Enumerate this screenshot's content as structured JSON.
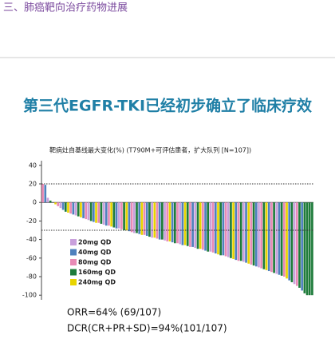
{
  "header": {
    "section_title": "三、肺癌靶向治疗药物进展"
  },
  "slide_title": "第三代EGFR-TKI已经初步确立了临床疗效",
  "chart_data": {
    "type": "bar",
    "subtitle": "靶病灶自基线最大变化(%) (T790M+可评估患者，扩大队列 [N=107])",
    "values": [
      20,
      19,
      5,
      2,
      0,
      -2,
      -4,
      -6,
      -8,
      -10,
      -11,
      -12,
      -13,
      -14,
      -15,
      -16,
      -17,
      -18,
      -19,
      -20,
      -21,
      -22,
      -22,
      -23,
      -24,
      -25,
      -25,
      -26,
      -27,
      -28,
      -28,
      -29,
      -30,
      -30,
      -31,
      -32,
      -33,
      -33,
      -34,
      -35,
      -35,
      -36,
      -37,
      -38,
      -38,
      -39,
      -40,
      -40,
      -41,
      -42,
      -42,
      -43,
      -44,
      -44,
      -45,
      -46,
      -46,
      -47,
      -48,
      -48,
      -49,
      -50,
      -50,
      -51,
      -52,
      -53,
      -53,
      -54,
      -55,
      -56,
      -57,
      -57,
      -58,
      -59,
      -60,
      -61,
      -62,
      -63,
      -63,
      -64,
      -65,
      -66,
      -67,
      -68,
      -69,
      -70,
      -71,
      -72,
      -73,
      -74,
      -75,
      -76,
      -77,
      -78,
      -79,
      -80,
      -82,
      -84,
      -86,
      -88,
      -90,
      -92,
      -95,
      -98,
      -100,
      -100,
      -100
    ],
    "dose": [
      2,
      1,
      0,
      3,
      1,
      4,
      2,
      0,
      1,
      3,
      4,
      2,
      1,
      0,
      3,
      4,
      1,
      2,
      0,
      3,
      1,
      4,
      2,
      3,
      0,
      1,
      2,
      4,
      3,
      1,
      0,
      2,
      3,
      4,
      1,
      2,
      0,
      3,
      1,
      4,
      2,
      1,
      3,
      0,
      4,
      2,
      1,
      3,
      0,
      2,
      4,
      1,
      3,
      2,
      0,
      1,
      4,
      3,
      2,
      1,
      0,
      3,
      4,
      2,
      1,
      3,
      0,
      2,
      1,
      4,
      3,
      1,
      2,
      0,
      3,
      4,
      1,
      2,
      3,
      0,
      1,
      4,
      2,
      3,
      1,
      0,
      2,
      3,
      4,
      1,
      2,
      3,
      0,
      1,
      3,
      2,
      4,
      1,
      3,
      0,
      2,
      3,
      1,
      3,
      3,
      3,
      3
    ],
    "legend": [
      {
        "name": "20mg QD",
        "color": "#c9a0dc"
      },
      {
        "name": "40mg QD",
        "color": "#4f81bd"
      },
      {
        "name": "80mg QD",
        "color": "#e88ab5"
      },
      {
        "name": "160mg QD",
        "color": "#1e7b3a"
      },
      {
        "name": "240mg QD",
        "color": "#e8d400"
      }
    ],
    "ylim": [
      -105,
      45
    ],
    "yticks": [
      40,
      20,
      0,
      -20,
      -40,
      -60,
      -80,
      -100
    ],
    "reference_lines": [
      20,
      -30
    ]
  },
  "summary": [
    "ORR=64% (69/107)",
    "DCR(CR+PR+SD)=94%(101/107)"
  ]
}
